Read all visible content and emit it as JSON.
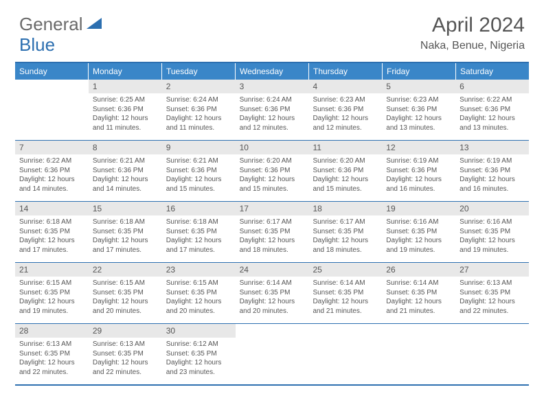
{
  "brand": {
    "left": "General",
    "right": "Blue"
  },
  "title": "April 2024",
  "subtitle": "Naka, Benue, Nigeria",
  "colors": {
    "brand_blue": "#2c6fb0",
    "header_bg": "#3a86c8",
    "daynum_bg": "#e8e8e8",
    "text": "#555555",
    "white": "#ffffff"
  },
  "typography": {
    "title_fontsize": 30,
    "subtitle_fontsize": 16,
    "logo_fontsize": 26,
    "dow_fontsize": 12,
    "body_fontsize": 10
  },
  "daysOfWeek": [
    "Sunday",
    "Monday",
    "Tuesday",
    "Wednesday",
    "Thursday",
    "Friday",
    "Saturday"
  ],
  "weeks": [
    [
      {
        "empty": true
      },
      {
        "num": "1",
        "sunrise": "Sunrise: 6:25 AM",
        "sunset": "Sunset: 6:36 PM",
        "daylight": "Daylight: 12 hours and 11 minutes."
      },
      {
        "num": "2",
        "sunrise": "Sunrise: 6:24 AM",
        "sunset": "Sunset: 6:36 PM",
        "daylight": "Daylight: 12 hours and 11 minutes."
      },
      {
        "num": "3",
        "sunrise": "Sunrise: 6:24 AM",
        "sunset": "Sunset: 6:36 PM",
        "daylight": "Daylight: 12 hours and 12 minutes."
      },
      {
        "num": "4",
        "sunrise": "Sunrise: 6:23 AM",
        "sunset": "Sunset: 6:36 PM",
        "daylight": "Daylight: 12 hours and 12 minutes."
      },
      {
        "num": "5",
        "sunrise": "Sunrise: 6:23 AM",
        "sunset": "Sunset: 6:36 PM",
        "daylight": "Daylight: 12 hours and 13 minutes."
      },
      {
        "num": "6",
        "sunrise": "Sunrise: 6:22 AM",
        "sunset": "Sunset: 6:36 PM",
        "daylight": "Daylight: 12 hours and 13 minutes."
      }
    ],
    [
      {
        "num": "7",
        "sunrise": "Sunrise: 6:22 AM",
        "sunset": "Sunset: 6:36 PM",
        "daylight": "Daylight: 12 hours and 14 minutes."
      },
      {
        "num": "8",
        "sunrise": "Sunrise: 6:21 AM",
        "sunset": "Sunset: 6:36 PM",
        "daylight": "Daylight: 12 hours and 14 minutes."
      },
      {
        "num": "9",
        "sunrise": "Sunrise: 6:21 AM",
        "sunset": "Sunset: 6:36 PM",
        "daylight": "Daylight: 12 hours and 15 minutes."
      },
      {
        "num": "10",
        "sunrise": "Sunrise: 6:20 AM",
        "sunset": "Sunset: 6:36 PM",
        "daylight": "Daylight: 12 hours and 15 minutes."
      },
      {
        "num": "11",
        "sunrise": "Sunrise: 6:20 AM",
        "sunset": "Sunset: 6:36 PM",
        "daylight": "Daylight: 12 hours and 15 minutes."
      },
      {
        "num": "12",
        "sunrise": "Sunrise: 6:19 AM",
        "sunset": "Sunset: 6:36 PM",
        "daylight": "Daylight: 12 hours and 16 minutes."
      },
      {
        "num": "13",
        "sunrise": "Sunrise: 6:19 AM",
        "sunset": "Sunset: 6:36 PM",
        "daylight": "Daylight: 12 hours and 16 minutes."
      }
    ],
    [
      {
        "num": "14",
        "sunrise": "Sunrise: 6:18 AM",
        "sunset": "Sunset: 6:35 PM",
        "daylight": "Daylight: 12 hours and 17 minutes."
      },
      {
        "num": "15",
        "sunrise": "Sunrise: 6:18 AM",
        "sunset": "Sunset: 6:35 PM",
        "daylight": "Daylight: 12 hours and 17 minutes."
      },
      {
        "num": "16",
        "sunrise": "Sunrise: 6:18 AM",
        "sunset": "Sunset: 6:35 PM",
        "daylight": "Daylight: 12 hours and 17 minutes."
      },
      {
        "num": "17",
        "sunrise": "Sunrise: 6:17 AM",
        "sunset": "Sunset: 6:35 PM",
        "daylight": "Daylight: 12 hours and 18 minutes."
      },
      {
        "num": "18",
        "sunrise": "Sunrise: 6:17 AM",
        "sunset": "Sunset: 6:35 PM",
        "daylight": "Daylight: 12 hours and 18 minutes."
      },
      {
        "num": "19",
        "sunrise": "Sunrise: 6:16 AM",
        "sunset": "Sunset: 6:35 PM",
        "daylight": "Daylight: 12 hours and 19 minutes."
      },
      {
        "num": "20",
        "sunrise": "Sunrise: 6:16 AM",
        "sunset": "Sunset: 6:35 PM",
        "daylight": "Daylight: 12 hours and 19 minutes."
      }
    ],
    [
      {
        "num": "21",
        "sunrise": "Sunrise: 6:15 AM",
        "sunset": "Sunset: 6:35 PM",
        "daylight": "Daylight: 12 hours and 19 minutes."
      },
      {
        "num": "22",
        "sunrise": "Sunrise: 6:15 AM",
        "sunset": "Sunset: 6:35 PM",
        "daylight": "Daylight: 12 hours and 20 minutes."
      },
      {
        "num": "23",
        "sunrise": "Sunrise: 6:15 AM",
        "sunset": "Sunset: 6:35 PM",
        "daylight": "Daylight: 12 hours and 20 minutes."
      },
      {
        "num": "24",
        "sunrise": "Sunrise: 6:14 AM",
        "sunset": "Sunset: 6:35 PM",
        "daylight": "Daylight: 12 hours and 20 minutes."
      },
      {
        "num": "25",
        "sunrise": "Sunrise: 6:14 AM",
        "sunset": "Sunset: 6:35 PM",
        "daylight": "Daylight: 12 hours and 21 minutes."
      },
      {
        "num": "26",
        "sunrise": "Sunrise: 6:14 AM",
        "sunset": "Sunset: 6:35 PM",
        "daylight": "Daylight: 12 hours and 21 minutes."
      },
      {
        "num": "27",
        "sunrise": "Sunrise: 6:13 AM",
        "sunset": "Sunset: 6:35 PM",
        "daylight": "Daylight: 12 hours and 22 minutes."
      }
    ],
    [
      {
        "num": "28",
        "sunrise": "Sunrise: 6:13 AM",
        "sunset": "Sunset: 6:35 PM",
        "daylight": "Daylight: 12 hours and 22 minutes."
      },
      {
        "num": "29",
        "sunrise": "Sunrise: 6:13 AM",
        "sunset": "Sunset: 6:35 PM",
        "daylight": "Daylight: 12 hours and 22 minutes."
      },
      {
        "num": "30",
        "sunrise": "Sunrise: 6:12 AM",
        "sunset": "Sunset: 6:35 PM",
        "daylight": "Daylight: 12 hours and 23 minutes."
      },
      {
        "empty": true
      },
      {
        "empty": true
      },
      {
        "empty": true
      },
      {
        "empty": true
      }
    ]
  ]
}
